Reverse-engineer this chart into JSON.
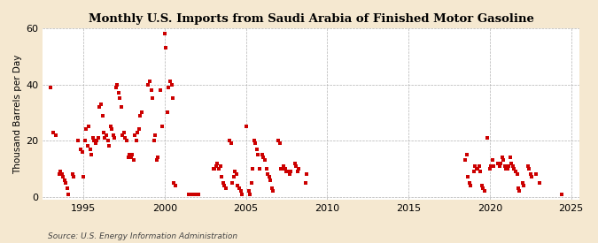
{
  "title": "Monthly U.S. Imports from Saudi Arabia of Finished Motor Gasoline",
  "ylabel": "Thousand Barrels per Day",
  "source": "Source: U.S. Energy Information Administration",
  "background_color": "#f5e8d0",
  "plot_background_color": "#ffffff",
  "marker_color": "#cc0000",
  "marker_size": 5,
  "xlim": [
    1992.5,
    2025.5
  ],
  "ylim": [
    -1,
    60
  ],
  "yticks": [
    0,
    20,
    40,
    60
  ],
  "xticks": [
    1995,
    2000,
    2005,
    2010,
    2015,
    2020,
    2025
  ],
  "data": [
    [
      1993.0,
      39
    ],
    [
      1993.17,
      23
    ],
    [
      1993.33,
      22
    ],
    [
      1993.5,
      8
    ],
    [
      1993.58,
      9
    ],
    [
      1993.67,
      8
    ],
    [
      1993.75,
      7
    ],
    [
      1993.83,
      6
    ],
    [
      1993.92,
      5
    ],
    [
      1994.0,
      3
    ],
    [
      1994.08,
      1
    ],
    [
      1994.33,
      8
    ],
    [
      1994.42,
      7
    ],
    [
      1994.67,
      20
    ],
    [
      1994.83,
      17
    ],
    [
      1994.92,
      16
    ],
    [
      1995.0,
      7
    ],
    [
      1995.08,
      20
    ],
    [
      1995.17,
      24
    ],
    [
      1995.25,
      18
    ],
    [
      1995.33,
      25
    ],
    [
      1995.42,
      17
    ],
    [
      1995.5,
      15
    ],
    [
      1995.58,
      21
    ],
    [
      1995.67,
      20
    ],
    [
      1995.75,
      19
    ],
    [
      1995.83,
      20
    ],
    [
      1995.92,
      21
    ],
    [
      1996.0,
      32
    ],
    [
      1996.08,
      33
    ],
    [
      1996.17,
      29
    ],
    [
      1996.25,
      23
    ],
    [
      1996.33,
      21
    ],
    [
      1996.42,
      22
    ],
    [
      1996.5,
      20
    ],
    [
      1996.58,
      18
    ],
    [
      1996.67,
      25
    ],
    [
      1996.75,
      24
    ],
    [
      1996.83,
      22
    ],
    [
      1996.92,
      21
    ],
    [
      1997.0,
      39
    ],
    [
      1997.08,
      40
    ],
    [
      1997.17,
      37
    ],
    [
      1997.25,
      35
    ],
    [
      1997.33,
      32
    ],
    [
      1997.42,
      22
    ],
    [
      1997.5,
      23
    ],
    [
      1997.58,
      21
    ],
    [
      1997.67,
      20
    ],
    [
      1997.75,
      14
    ],
    [
      1997.83,
      15
    ],
    [
      1997.92,
      14
    ],
    [
      1998.0,
      15
    ],
    [
      1998.08,
      13
    ],
    [
      1998.17,
      22
    ],
    [
      1998.25,
      20
    ],
    [
      1998.33,
      23
    ],
    [
      1998.42,
      24
    ],
    [
      1998.5,
      29
    ],
    [
      1998.58,
      30
    ],
    [
      1999.0,
      40
    ],
    [
      1999.08,
      41
    ],
    [
      1999.17,
      38
    ],
    [
      1999.25,
      35
    ],
    [
      1999.33,
      20
    ],
    [
      1999.42,
      22
    ],
    [
      1999.5,
      13
    ],
    [
      1999.58,
      14
    ],
    [
      1999.75,
      38
    ],
    [
      1999.83,
      25
    ],
    [
      2000.0,
      58
    ],
    [
      2000.08,
      53
    ],
    [
      2000.17,
      30
    ],
    [
      2000.25,
      39
    ],
    [
      2000.33,
      41
    ],
    [
      2000.42,
      40
    ],
    [
      2000.5,
      35
    ],
    [
      2000.58,
      5
    ],
    [
      2000.67,
      4
    ],
    [
      2001.5,
      1
    ],
    [
      2001.58,
      1
    ],
    [
      2001.67,
      1
    ],
    [
      2001.75,
      1
    ],
    [
      2001.83,
      1
    ],
    [
      2001.92,
      1
    ],
    [
      2002.0,
      1
    ],
    [
      2002.08,
      1
    ],
    [
      2003.0,
      10
    ],
    [
      2003.08,
      10
    ],
    [
      2003.17,
      11
    ],
    [
      2003.25,
      12
    ],
    [
      2003.33,
      10
    ],
    [
      2003.42,
      11
    ],
    [
      2003.5,
      7
    ],
    [
      2003.58,
      5
    ],
    [
      2003.67,
      4
    ],
    [
      2003.75,
      3
    ],
    [
      2004.0,
      20
    ],
    [
      2004.08,
      19
    ],
    [
      2004.17,
      5
    ],
    [
      2004.25,
      7
    ],
    [
      2004.33,
      9
    ],
    [
      2004.42,
      8
    ],
    [
      2004.5,
      4
    ],
    [
      2004.58,
      3
    ],
    [
      2004.67,
      2
    ],
    [
      2004.75,
      1
    ],
    [
      2005.0,
      25
    ],
    [
      2005.17,
      2
    ],
    [
      2005.25,
      1
    ],
    [
      2005.33,
      5
    ],
    [
      2005.42,
      10
    ],
    [
      2005.5,
      20
    ],
    [
      2005.58,
      19
    ],
    [
      2005.67,
      17
    ],
    [
      2005.75,
      15
    ],
    [
      2005.83,
      10
    ],
    [
      2006.0,
      15
    ],
    [
      2006.08,
      14
    ],
    [
      2006.17,
      13
    ],
    [
      2006.25,
      10
    ],
    [
      2006.33,
      8
    ],
    [
      2006.42,
      7
    ],
    [
      2006.5,
      6
    ],
    [
      2006.58,
      3
    ],
    [
      2006.67,
      2
    ],
    [
      2007.0,
      20
    ],
    [
      2007.08,
      19
    ],
    [
      2007.17,
      10
    ],
    [
      2007.25,
      10
    ],
    [
      2007.33,
      11
    ],
    [
      2007.42,
      10
    ],
    [
      2007.5,
      9
    ],
    [
      2007.58,
      9
    ],
    [
      2007.67,
      8
    ],
    [
      2007.75,
      9
    ],
    [
      2008.0,
      12
    ],
    [
      2008.08,
      11
    ],
    [
      2008.17,
      9
    ],
    [
      2008.25,
      10
    ],
    [
      2008.67,
      5
    ],
    [
      2008.75,
      8
    ],
    [
      2018.5,
      13
    ],
    [
      2018.58,
      15
    ],
    [
      2018.67,
      7
    ],
    [
      2018.75,
      5
    ],
    [
      2018.83,
      4
    ],
    [
      2019.0,
      9
    ],
    [
      2019.08,
      11
    ],
    [
      2019.17,
      10
    ],
    [
      2019.25,
      10
    ],
    [
      2019.33,
      11
    ],
    [
      2019.42,
      9
    ],
    [
      2019.5,
      4
    ],
    [
      2019.58,
      3
    ],
    [
      2019.67,
      2
    ],
    [
      2019.83,
      21
    ],
    [
      2020.0,
      10
    ],
    [
      2020.08,
      11
    ],
    [
      2020.17,
      13
    ],
    [
      2020.25,
      11
    ],
    [
      2020.5,
      12
    ],
    [
      2020.58,
      11
    ],
    [
      2020.67,
      12
    ],
    [
      2020.75,
      14
    ],
    [
      2020.83,
      13
    ],
    [
      2020.92,
      11
    ],
    [
      2021.0,
      10
    ],
    [
      2021.08,
      10
    ],
    [
      2021.17,
      11
    ],
    [
      2021.25,
      14
    ],
    [
      2021.33,
      12
    ],
    [
      2021.42,
      11
    ],
    [
      2021.5,
      10
    ],
    [
      2021.58,
      9
    ],
    [
      2021.67,
      8
    ],
    [
      2021.75,
      3
    ],
    [
      2021.83,
      2
    ],
    [
      2022.0,
      5
    ],
    [
      2022.08,
      4
    ],
    [
      2022.33,
      11
    ],
    [
      2022.42,
      10
    ],
    [
      2022.5,
      8
    ],
    [
      2022.58,
      7
    ],
    [
      2022.83,
      8
    ],
    [
      2023.08,
      5
    ],
    [
      2024.42,
      1
    ]
  ]
}
